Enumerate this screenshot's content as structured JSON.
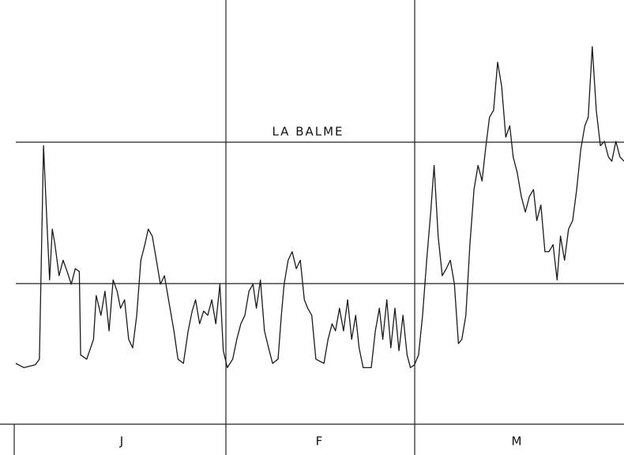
{
  "chart_data": {
    "type": "line",
    "title": "LA BALME",
    "categories": [
      "J",
      "F",
      "M"
    ],
    "color": "#1a1a1a",
    "xlim": [
      0,
      90
    ],
    "ylim": [
      0,
      3
    ],
    "x": [
      0,
      1.2,
      2.9,
      3.5,
      4.1,
      4.7,
      5.0,
      5.4,
      5.8,
      6.4,
      7.0,
      7.6,
      8.2,
      8.8,
      9.4,
      9.6,
      10.5,
      11.5,
      11.9,
      12.6,
      13.2,
      13.8,
      14.4,
      15.0,
      15.5,
      16.1,
      16.7,
      17.3,
      17.9,
      18.5,
      19.1,
      19.6,
      20.2,
      20.8,
      21.4,
      22.0,
      22.6,
      23.4,
      24.0,
      24.8,
      25.5,
      26.1,
      26.6,
      27.2,
      27.8,
      28.4,
      29.0,
      29.6,
      30.2,
      30.7,
      31.3,
      32.1,
      32.7,
      33.3,
      33.9,
      34.5,
      35.1,
      35.6,
      36.2,
      36.8,
      37.4,
      38.0,
      38.8,
      39.3,
      39.7,
      40.3,
      40.9,
      41.5,
      42.1,
      42.7,
      43.2,
      43.8,
      44.4,
      45.6,
      46.2,
      46.8,
      47.3,
      47.9,
      48.5,
      49.1,
      49.7,
      50.3,
      50.8,
      51.4,
      52.6,
      53.2,
      53.8,
      54.3,
      54.9,
      55.5,
      56.1,
      56.7,
      57.3,
      57.9,
      58.4,
      59.0,
      59.6,
      60.2,
      60.8,
      61.4,
      61.9,
      62.5,
      63.1,
      63.7,
      64.3,
      64.9,
      65.5,
      66.0,
      66.6,
      67.2,
      67.8,
      68.4,
      69.0,
      69.5,
      70.1,
      70.7,
      71.3,
      71.9,
      72.5,
      73.1,
      73.6,
      74.2,
      74.8,
      75.4,
      76.0,
      76.6,
      77.1,
      77.7,
      78.3,
      78.9,
      79.5,
      80.1,
      80.6,
      81.2,
      81.8,
      82.4,
      83.0,
      83.6,
      84.2,
      84.7,
      85.3,
      85.9,
      86.5,
      87.1,
      87.7,
      88.2,
      88.8,
      89.4,
      90.0
    ],
    "values": [
      0.43,
      0.4,
      0.42,
      0.46,
      1.97,
      1.33,
      1.02,
      1.38,
      1.27,
      1.05,
      1.16,
      1.08,
      0.99,
      1.1,
      1.08,
      0.49,
      0.46,
      0.6,
      0.91,
      0.77,
      0.94,
      0.66,
      1.02,
      0.94,
      0.82,
      0.88,
      0.6,
      0.54,
      0.77,
      1.16,
      1.27,
      1.38,
      1.33,
      1.16,
      0.99,
      1.05,
      0.88,
      0.66,
      0.46,
      0.43,
      0.66,
      0.8,
      0.88,
      0.71,
      0.8,
      0.77,
      0.88,
      0.71,
      0.99,
      0.52,
      0.4,
      0.46,
      0.6,
      0.71,
      0.77,
      0.94,
      0.99,
      0.82,
      1.02,
      0.66,
      0.54,
      0.43,
      0.46,
      0.77,
      0.99,
      1.16,
      1.22,
      1.1,
      1.16,
      0.88,
      0.82,
      0.77,
      0.46,
      0.43,
      0.6,
      0.71,
      0.66,
      0.82,
      0.66,
      0.88,
      0.6,
      0.77,
      0.54,
      0.4,
      0.4,
      0.66,
      0.82,
      0.6,
      0.88,
      0.54,
      0.82,
      0.52,
      0.77,
      0.49,
      0.4,
      0.42,
      0.49,
      0.77,
      1.16,
      1.5,
      1.83,
      1.33,
      1.05,
      1.1,
      1.16,
      0.99,
      0.57,
      0.6,
      0.77,
      1.27,
      1.66,
      1.83,
      1.72,
      1.94,
      2.17,
      2.22,
      2.56,
      2.39,
      2.03,
      2.11,
      1.89,
      1.78,
      1.61,
      1.5,
      1.61,
      1.66,
      1.44,
      1.55,
      1.22,
      1.22,
      1.27,
      1.02,
      1.33,
      1.16,
      1.38,
      1.44,
      1.66,
      1.94,
      2.11,
      2.17,
      2.67,
      2.22,
      1.97,
      2.0,
      1.89,
      1.86,
      2.0,
      1.89,
      1.86
    ]
  }
}
